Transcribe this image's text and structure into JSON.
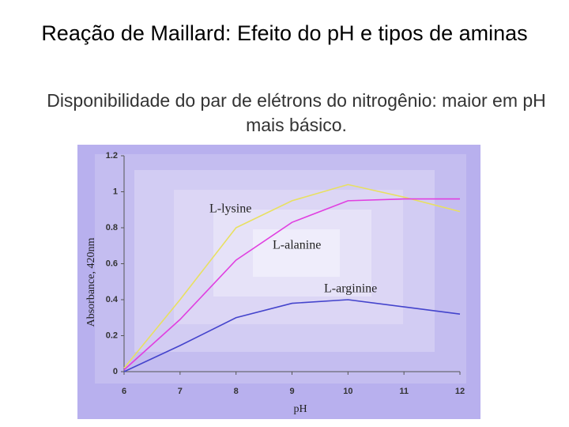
{
  "slide": {
    "title": "Reação de Maillard: Efeito do pH e tipos de aminas",
    "subtitle": "Disponibilidade do par de elétrons do nitrogênio: maior em pH mais básico."
  },
  "chart_data": {
    "type": "line",
    "x_label": "pH",
    "y_label": "Absorbance, 420nm",
    "x": [
      6,
      7,
      8,
      9,
      10,
      11,
      12
    ],
    "series": [
      {
        "name": "L-lysine",
        "color": "#e8e060",
        "values": [
          0.02,
          0.4,
          0.8,
          0.95,
          1.04,
          0.97,
          0.89
        ]
      },
      {
        "name": "L-alanine",
        "color": "#e040e0",
        "values": [
          0.01,
          0.29,
          0.62,
          0.83,
          0.95,
          0.96,
          0.96
        ]
      },
      {
        "name": "L-arginine",
        "color": "#4444cc",
        "values": [
          0,
          0.145,
          0.3,
          0.38,
          0.4,
          0.36,
          0.32
        ]
      }
    ],
    "xlim": [
      6,
      12
    ],
    "xticks": [
      6,
      7,
      8,
      9,
      10,
      11,
      12
    ],
    "ylim": [
      0,
      1.2
    ],
    "yticks": [
      0,
      0.2,
      0.4,
      0.6,
      0.8,
      1,
      1.2
    ]
  }
}
